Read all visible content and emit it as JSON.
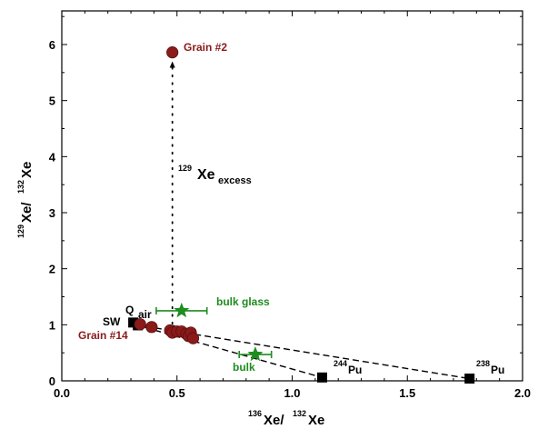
{
  "chart_data": {
    "type": "scatter",
    "xlim": [
      0.0,
      2.0
    ],
    "ylim": [
      0,
      6.6
    ],
    "x_ticks": [
      "0.0",
      "0.5",
      "1.0",
      "1.5",
      "2.0"
    ],
    "x_tick_values": [
      0.0,
      0.5,
      1.0,
      1.5,
      2.0
    ],
    "y_ticks": [
      "0",
      "1",
      "2",
      "3",
      "4",
      "5",
      "6"
    ],
    "y_tick_values": [
      0,
      1,
      2,
      3,
      4,
      5,
      6
    ],
    "xlabel": {
      "sup": "136",
      "main": "Xe/",
      "sup2": "132",
      "main2": "Xe"
    },
    "ylabel": {
      "sup": "129",
      "main": "Xe/",
      "sup2": "132",
      "main2": "Xe"
    },
    "grid": false,
    "colors": {
      "grain": "#8b1a1a",
      "bulk": "#1e8c1e",
      "reference": "#000000",
      "mix_line": "#000000"
    },
    "grains": [
      {
        "x": 0.48,
        "y": 5.86,
        "yerr": 0.1
      },
      {
        "x": 0.34,
        "y": 1.01
      },
      {
        "x": 0.39,
        "y": 0.96
      },
      {
        "x": 0.47,
        "y": 0.9
      },
      {
        "x": 0.48,
        "y": 0.86
      },
      {
        "x": 0.5,
        "y": 0.88
      },
      {
        "x": 0.52,
        "y": 0.88
      },
      {
        "x": 0.54,
        "y": 0.84
      },
      {
        "x": 0.55,
        "y": 0.8
      },
      {
        "x": 0.56,
        "y": 0.86
      },
      {
        "x": 0.57,
        "y": 0.76
      }
    ],
    "bulk": [
      {
        "label": "bulk glass",
        "x": 0.52,
        "y": 1.25,
        "xerr": 0.11
      },
      {
        "label": "bulk",
        "x": 0.84,
        "y": 0.47,
        "xerr": 0.07
      }
    ],
    "references": [
      {
        "label": "Q",
        "x": 0.31,
        "y": 1.04
      },
      {
        "label": "SW",
        "x": 0.33,
        "y": 0.99
      },
      {
        "label": "air",
        "x": 0.33,
        "y": 0.98
      },
      {
        "label": "Pu",
        "sup": "244",
        "x": 1.13,
        "y": 0.06
      },
      {
        "label": "Pu",
        "sup": "238",
        "x": 1.77,
        "y": 0.04
      }
    ],
    "mixing_lines": [
      {
        "from": [
          0.32,
          1.0
        ],
        "to": [
          1.13,
          0.06
        ]
      },
      {
        "from": [
          0.32,
          1.0
        ],
        "to": [
          1.77,
          0.04
        ]
      }
    ],
    "excess_arrow": {
      "x": 0.48,
      "y_from": 0.88,
      "y_to": 5.7
    },
    "annotations": {
      "grain2": "Grain #2",
      "grain14": "Grain #14",
      "bulk_glass": "bulk glass",
      "bulk": "bulk",
      "excess": {
        "sup": "129",
        "main": "Xe",
        "sub": "excess"
      },
      "Q": "Q",
      "SW": "SW",
      "air": "air",
      "pu244": {
        "sup": "244",
        "main": "Pu"
      },
      "pu238": {
        "sup": "238",
        "main": "Pu"
      }
    }
  }
}
